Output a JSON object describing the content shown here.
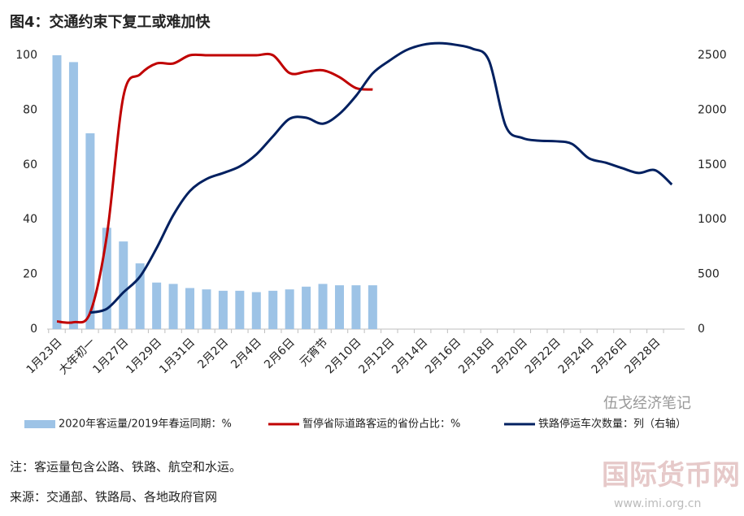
{
  "chart_data": {
    "type": "combo",
    "title": "图4：交通约束下复工或难加快",
    "categories": [
      "1月23日",
      null,
      "大年初一",
      null,
      "1月27日",
      null,
      "1月29日",
      null,
      "1月31日",
      null,
      "2月2日",
      null,
      "2月4日",
      null,
      "2月6日",
      null,
      "元宵节",
      null,
      "2月10日",
      null,
      "2月12日",
      null,
      "2月14日",
      null,
      "2月16日",
      null,
      "2月18日",
      null,
      "2月20日",
      null,
      "2月22日",
      null,
      "2月24日",
      null,
      "2月26日",
      null,
      "2月28日",
      null
    ],
    "series": [
      {
        "name": "2020年客运量/2019年春运同期：%",
        "type": "bar",
        "color": "#9dc3e6",
        "axis": "y",
        "values": [
          100,
          97.5,
          71.5,
          37,
          32,
          24,
          17,
          16.5,
          15,
          14.5,
          14,
          14,
          13.5,
          14,
          14.5,
          15.5,
          16.5,
          16,
          16,
          16,
          null,
          null,
          null,
          null,
          null,
          null,
          null,
          null,
          null,
          null,
          null,
          null,
          null,
          null,
          null,
          null,
          null,
          null
        ]
      },
      {
        "name": "暂停省际道路客运的省份占比：%",
        "type": "line",
        "color": "#c00000",
        "axis": "y",
        "values": [
          2.8,
          2.5,
          6,
          34,
          85,
          93,
          97,
          97,
          100,
          100,
          100,
          100,
          100,
          100,
          93.5,
          94,
          94.5,
          92,
          88,
          87.5,
          null,
          null,
          null,
          null,
          null,
          null,
          null,
          null,
          null,
          null,
          null,
          null,
          null,
          null,
          null,
          null,
          null,
          null
        ]
      },
      {
        "name": "铁路停运车次数量：列（右轴）",
        "type": "line",
        "color": "#002060",
        "axis": "y2",
        "values": [
          null,
          null,
          150,
          185,
          335,
          480,
          740,
          1040,
          1260,
          1370,
          1425,
          1485,
          1595,
          1760,
          1920,
          1930,
          1875,
          1965,
          2130,
          2335,
          2450,
          2545,
          2595,
          2610,
          2595,
          2560,
          2450,
          1855,
          1745,
          1720,
          1715,
          1690,
          1560,
          1520,
          1470,
          1425,
          1450,
          1320
        ]
      }
    ],
    "ylim": [
      0,
      100
    ],
    "yticks": [
      0,
      20,
      40,
      60,
      80,
      100
    ],
    "y2lim": [
      0,
      2500
    ],
    "y2ticks": [
      0,
      500,
      1000,
      1500,
      2000,
      2500
    ],
    "legend": "bottom",
    "notes": [
      "注：客运量包含公路、铁路、航空和水运。",
      "来源：交通部、铁路局、各地政府官网"
    ],
    "watermarks": [
      "伍戈经济笔记",
      "国际货币网",
      "www.imi.org.cn"
    ]
  }
}
